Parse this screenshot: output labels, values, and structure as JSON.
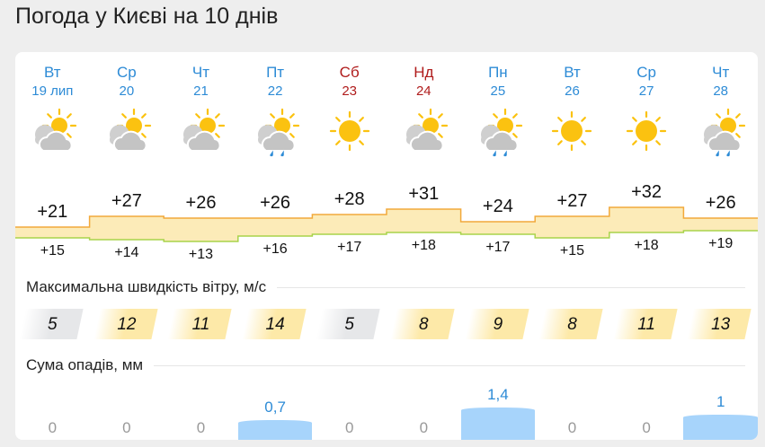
{
  "title": "Погода у Києві на 10 днів",
  "days": [
    {
      "dow": "Вт",
      "date": "19 лип",
      "weekend": false,
      "icon": "partly-cloudy-icon",
      "max": "+21",
      "min": "+15",
      "wind": "5",
      "wind_level": "low",
      "precip": "0"
    },
    {
      "dow": "Ср",
      "date": "20",
      "weekend": false,
      "icon": "partly-cloudy-icon",
      "max": "+27",
      "min": "+14",
      "wind": "12",
      "wind_level": "medium",
      "precip": "0"
    },
    {
      "dow": "Чт",
      "date": "21",
      "weekend": false,
      "icon": "partly-cloudy-icon",
      "max": "+26",
      "min": "+13",
      "wind": "11",
      "wind_level": "medium",
      "precip": "0"
    },
    {
      "dow": "Пт",
      "date": "22",
      "weekend": false,
      "icon": "partly-cloudy-rain-icon",
      "max": "+26",
      "min": "+16",
      "wind": "14",
      "wind_level": "medium",
      "precip": "0,7"
    },
    {
      "dow": "Сб",
      "date": "23",
      "weekend": true,
      "icon": "sun-icon",
      "max": "+28",
      "min": "+17",
      "wind": "5",
      "wind_level": "low",
      "precip": "0"
    },
    {
      "dow": "Нд",
      "date": "24",
      "weekend": true,
      "icon": "partly-cloudy-icon",
      "max": "+31",
      "min": "+18",
      "wind": "8",
      "wind_level": "medium",
      "precip": "0"
    },
    {
      "dow": "Пн",
      "date": "25",
      "weekend": false,
      "icon": "partly-cloudy-rain-icon",
      "max": "+24",
      "min": "+17",
      "wind": "9",
      "wind_level": "medium",
      "precip": "1,4"
    },
    {
      "dow": "Вт",
      "date": "26",
      "weekend": false,
      "icon": "sun-icon",
      "max": "+27",
      "min": "+15",
      "wind": "8",
      "wind_level": "medium",
      "precip": "0"
    },
    {
      "dow": "Ср",
      "date": "27",
      "weekend": false,
      "icon": "sun-icon",
      "max": "+32",
      "min": "+18",
      "wind": "11",
      "wind_level": "medium",
      "precip": "0"
    },
    {
      "dow": "Чт",
      "date": "28",
      "weekend": false,
      "icon": "partly-cloudy-rain-icon",
      "max": "+26",
      "min": "+19",
      "wind": "13",
      "wind_level": "medium",
      "precip": "1"
    }
  ],
  "wind_title": "Максимальна швидкість вітру, м/с",
  "precip_title": "Сума опадів, мм",
  "colors": {
    "weekday": "#2d8bd6",
    "weekend": "#b01c1c",
    "band": "#fcebb8",
    "max_line": "#f2a93b",
    "min_line": "#a8d34a",
    "precip": "#a7d4fb"
  }
}
